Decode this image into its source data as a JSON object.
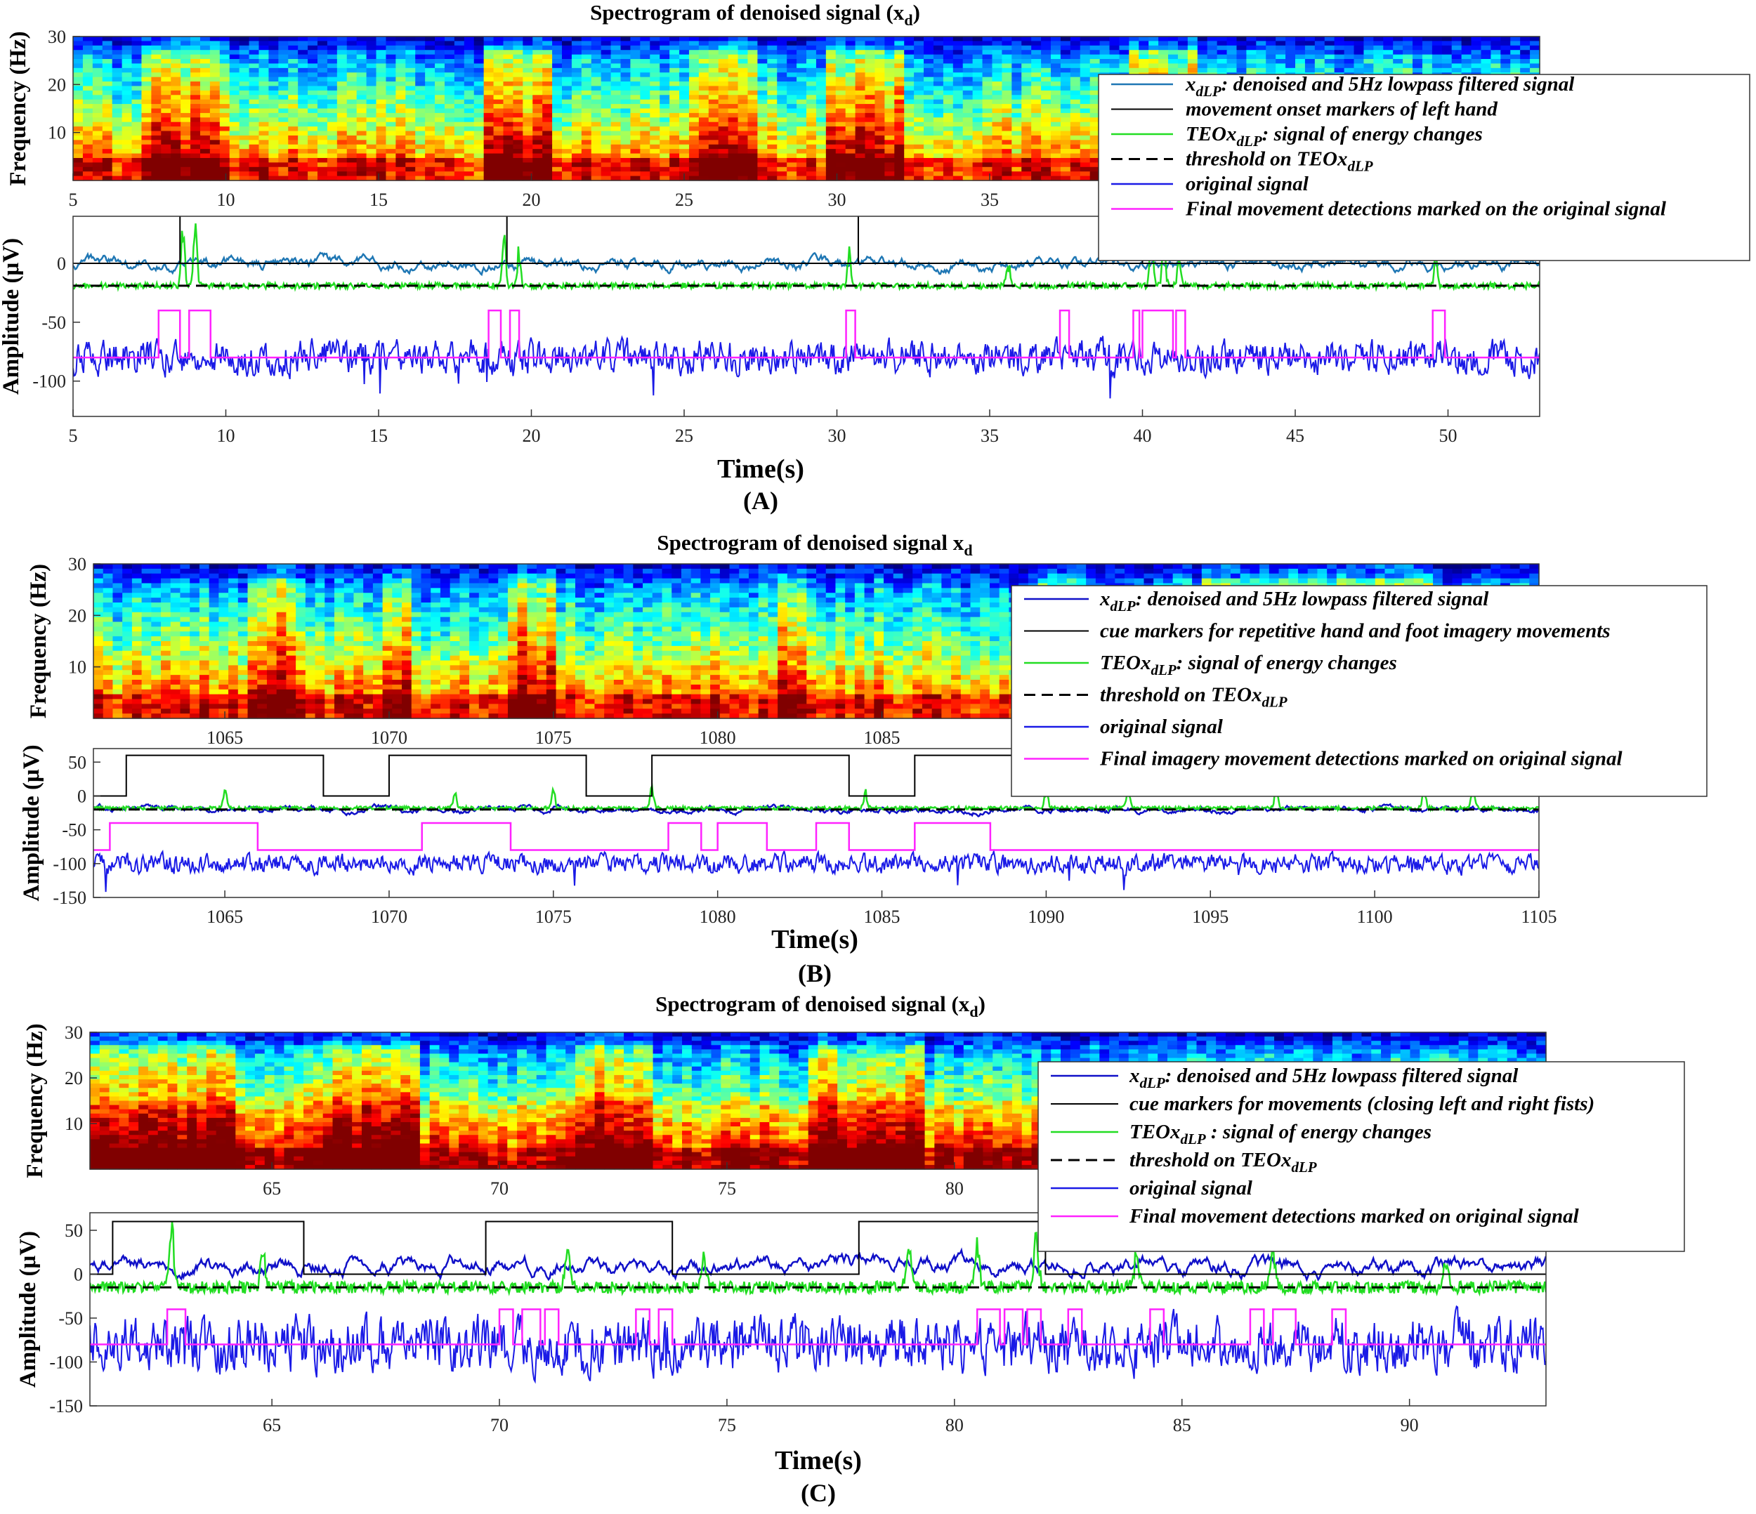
{
  "colors": {
    "xdlp_A": "#1f77b4",
    "xdlp_B": "#1010c8",
    "xdlp_C": "#1010c8",
    "onset": "#000000",
    "teo": "#22dd22",
    "threshold": "#000000",
    "original": "#1a1ae6",
    "detection": "#ff22ff"
  },
  "spectrogram_colormap": "jet",
  "chart_data": [
    {
      "panel": "(A)",
      "xlabel": "Time(s)",
      "spectrogram": {
        "type": "heatmap",
        "title": "Spectrogram of denoised signal (x",
        "title_sub": "d",
        "title_close": ")",
        "ylabel": "Frequency (Hz)",
        "xlim": [
          5,
          53
        ],
        "ylim": [
          0,
          30
        ],
        "xticks": [
          5,
          10,
          15,
          20,
          25,
          30,
          35,
          40
        ],
        "yticks": [
          10,
          20,
          30
        ],
        "high_energy_bands": [
          [
            7.5,
            9.8
          ],
          [
            18.6,
            20.5
          ],
          [
            25.5,
            27
          ],
          [
            30,
            32
          ],
          [
            40,
            41.5
          ]
        ]
      },
      "signals": {
        "type": "line",
        "ylabel": "Amplitude (μV)",
        "xlim": [
          5,
          53
        ],
        "ylim": [
          -130,
          40
        ],
        "xticks": [
          5,
          10,
          15,
          20,
          25,
          30,
          35,
          40,
          45,
          50
        ],
        "yticks": [
          0,
          -50,
          -100
        ],
        "xdlp_baseline": 0,
        "teo_baseline": -19,
        "threshold": -19,
        "original_baseline": -80,
        "onset_markers": [
          8.5,
          19.2,
          30.7,
          40.0
        ],
        "detection_intervals": [
          [
            7.8,
            8.5
          ],
          [
            8.8,
            9.5
          ],
          [
            18.6,
            19.0
          ],
          [
            19.3,
            19.6
          ],
          [
            30.3,
            30.6
          ],
          [
            37.3,
            37.6
          ],
          [
            39.7,
            39.9
          ],
          [
            40.0,
            41.0
          ],
          [
            41.1,
            41.4
          ],
          [
            49.5,
            49.9
          ]
        ],
        "detection_high": -40,
        "detection_low": -80,
        "teo_spikes": [
          [
            8.6,
            40
          ],
          [
            9.0,
            38
          ],
          [
            19.1,
            40
          ],
          [
            19.6,
            18
          ],
          [
            30.4,
            25
          ],
          [
            35.6,
            8
          ],
          [
            40.3,
            32
          ],
          [
            40.7,
            22
          ],
          [
            41.2,
            15
          ],
          [
            49.6,
            10
          ]
        ]
      },
      "legend": [
        {
          "label": "x",
          "sub": "dLP",
          "rest": ": denoised and 5Hz lowpass filtered signal",
          "style": "xdlp"
        },
        {
          "label": "movement onset markers of left hand",
          "style": "onset"
        },
        {
          "label": "TEOx",
          "sub": "dLP",
          "rest": ": signal of energy changes",
          "style": "teo"
        },
        {
          "label": "threshold on TEOx",
          "sub": "dLP",
          "style": "threshold"
        },
        {
          "label": "original signal",
          "style": "original"
        },
        {
          "label": "Final movement detections marked on the original signal",
          "style": "detection"
        }
      ]
    },
    {
      "panel": "(B)",
      "xlabel": "Time(s)",
      "spectrogram": {
        "type": "heatmap",
        "title": "Spectrogram of denoised signal x",
        "title_sub": "d",
        "title_close": "",
        "ylabel": "Frequency (Hz)",
        "xlim": [
          1061,
          1105
        ],
        "ylim": [
          0,
          30
        ],
        "xticks": [
          1065,
          1070,
          1075,
          1080,
          1085
        ],
        "yticks": [
          10,
          20,
          30
        ],
        "high_energy_bands": [
          [
            1066,
            1066.8
          ],
          [
            1070,
            1070.5
          ],
          [
            1074,
            1074.8
          ],
          [
            1082,
            1082.5
          ],
          [
            1090,
            1090.8
          ],
          [
            1095,
            1101.5
          ]
        ]
      },
      "signals": {
        "type": "line",
        "ylabel": "Amplitude (μV)",
        "xlim": [
          1061,
          1105
        ],
        "ylim": [
          -150,
          70
        ],
        "xticks": [
          1065,
          1070,
          1075,
          1080,
          1085,
          1090,
          1095,
          1100,
          1105
        ],
        "yticks": [
          50,
          0,
          -50,
          -100,
          -150
        ],
        "xdlp_baseline": -20,
        "teo_baseline": -18,
        "threshold": -20,
        "original_baseline": -100,
        "cue_high": 60,
        "cue_low": 0,
        "cue_high_intervals": [
          [
            1062,
            1068
          ],
          [
            1070,
            1076
          ],
          [
            1078,
            1084
          ],
          [
            1086,
            1092
          ]
        ],
        "detection_intervals": [
          [
            1061.5,
            1066
          ],
          [
            1071,
            1073.7
          ],
          [
            1078.5,
            1079.5
          ],
          [
            1080,
            1081.5
          ],
          [
            1083,
            1084
          ],
          [
            1086,
            1088.3
          ]
        ],
        "detection_high": -40,
        "detection_low": -80,
        "teo_spikes": [
          [
            1065,
            15
          ],
          [
            1072,
            10
          ],
          [
            1075,
            12
          ],
          [
            1078,
            20
          ],
          [
            1084.5,
            15
          ],
          [
            1090,
            10
          ],
          [
            1092.5,
            22
          ],
          [
            1097,
            15
          ],
          [
            1101.5,
            25
          ],
          [
            1103,
            18
          ]
        ]
      },
      "legend": [
        {
          "label": "x",
          "sub": "dLP",
          "rest": ": denoised and 5Hz lowpass filtered signal",
          "style": "xdlp"
        },
        {
          "label": "cue markers for  repetitive hand and foot  imagery movements",
          "style": "onset"
        },
        {
          "label": "TEOx",
          "sub": "dLP",
          "rest": ": signal of energy  changes",
          "style": "teo"
        },
        {
          "label": "threshold on TEOx",
          "sub": "dLP",
          "style": "threshold"
        },
        {
          "label": "original signal",
          "style": "original"
        },
        {
          "label": "Final  imagery movement detections marked on original signal",
          "style": "detection"
        }
      ]
    },
    {
      "panel": "(C)",
      "xlabel": "Time(s)",
      "spectrogram": {
        "type": "heatmap",
        "title": "Spectrogram of denoised signal (x",
        "title_sub": "d",
        "title_close": ")",
        "ylabel": "Frequency (Hz)",
        "xlim": [
          61,
          93
        ],
        "ylim": [
          0,
          30
        ],
        "xticks": [
          65,
          70,
          75,
          80
        ],
        "yticks": [
          10,
          20,
          30
        ],
        "high_energy_bands": [
          [
            61,
            64
          ],
          [
            66,
            68
          ],
          [
            72,
            73
          ],
          [
            77,
            79
          ]
        ]
      },
      "signals": {
        "type": "line",
        "ylabel": "Amplitude (μV)",
        "xlim": [
          61,
          93
        ],
        "ylim": [
          -150,
          70
        ],
        "xticks": [
          65,
          70,
          75,
          80,
          85,
          90
        ],
        "yticks": [
          50,
          0,
          -50,
          -100,
          -150
        ],
        "xdlp_baseline": 10,
        "teo_baseline": -15,
        "threshold": -15,
        "original_baseline": -80,
        "cue_high": 60,
        "cue_low": 0,
        "cue_high_intervals": [
          [
            61.5,
            65.7
          ],
          [
            69.7,
            73.8
          ],
          [
            77.9,
            82
          ]
        ],
        "detection_intervals": [
          [
            62.7,
            63.1
          ],
          [
            70,
            70.3
          ],
          [
            70.5,
            70.9
          ],
          [
            71,
            71.3
          ],
          [
            73,
            73.3
          ],
          [
            73.5,
            73.8
          ],
          [
            80.5,
            81
          ],
          [
            81.1,
            81.5
          ],
          [
            81.6,
            81.9
          ],
          [
            82.5,
            82.8
          ],
          [
            84.3,
            84.6
          ],
          [
            86.5,
            86.8
          ],
          [
            87,
            87.5
          ],
          [
            88.3,
            88.6
          ]
        ],
        "detection_high": -40,
        "detection_low": -80,
        "teo_spikes": [
          [
            62.8,
            60
          ],
          [
            64.8,
            40
          ],
          [
            71.5,
            45
          ],
          [
            74.5,
            35
          ],
          [
            79,
            55
          ],
          [
            80.5,
            50
          ],
          [
            81.8,
            60
          ],
          [
            84,
            40
          ],
          [
            87,
            35
          ],
          [
            90.8,
            30
          ]
        ]
      },
      "legend": [
        {
          "label": "x",
          "sub": "dLP",
          "rest": ": denoised and 5Hz lowpass filtered signal",
          "style": "xdlp"
        },
        {
          "label": "cue markers for movements (closing left and right fists)",
          "style": "onset"
        },
        {
          "label": "TEOx",
          "sub": "dLP",
          "rest": " : signal of energy  changes",
          "style": "teo"
        },
        {
          "label": "threshold on TEOx",
          "sub": "dLP",
          "style": "threshold"
        },
        {
          "label": "original signal",
          "style": "original"
        },
        {
          "label": "Final movement detections marked on original signal",
          "style": "detection"
        }
      ]
    }
  ]
}
